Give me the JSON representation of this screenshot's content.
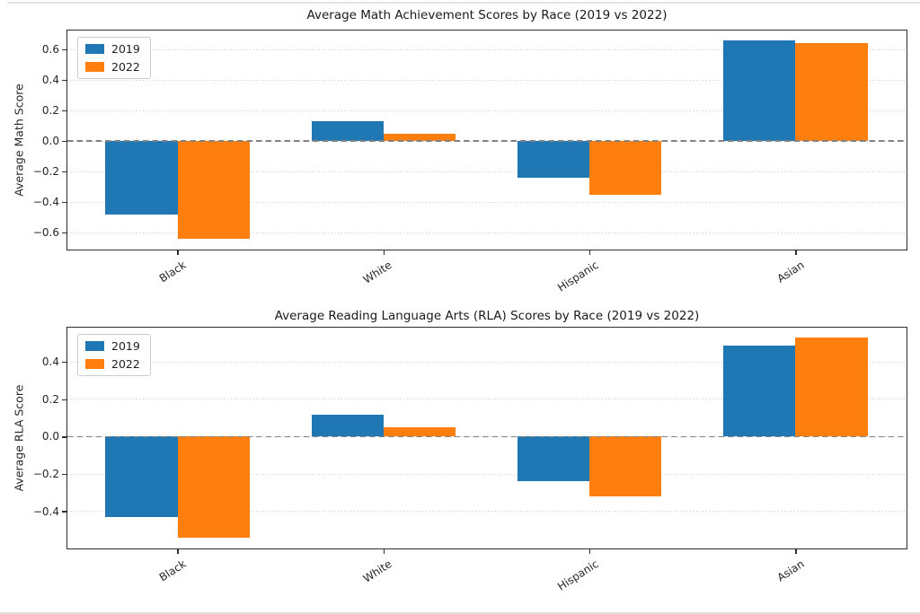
{
  "figure": {
    "background": "#ffffff",
    "top_border_color": "#e4e4e4",
    "bottom_border_color": "#e0e0e0"
  },
  "styles": {
    "series_2019_color": "#1f77b4",
    "series_2022_color": "#ff7f0e",
    "zero_line_color": "#828282",
    "gridline_color": "#c8c8c8",
    "spine_color": "#2e2e2e",
    "legend_border_color": "#cccccc",
    "text_color": "#1f1f1f"
  },
  "chart_data": [
    {
      "type": "bar",
      "title": "Average Math Achievement Scores by Race (2019 vs 2022)",
      "ylabel": "Average Math Score",
      "xlabel": "",
      "categories": [
        "Black",
        "White",
        "Hispanic",
        "Asian"
      ],
      "series": [
        {
          "name": "2019",
          "color": "#1f77b4",
          "values": [
            -0.48,
            0.13,
            -0.24,
            0.66
          ]
        },
        {
          "name": "2022",
          "color": "#ff7f0e",
          "values": [
            -0.64,
            0.05,
            -0.35,
            0.64
          ]
        }
      ],
      "yticks": [
        0.6,
        0.4,
        0.2,
        0.0,
        -0.2,
        -0.4,
        -0.6
      ],
      "ylim": [
        -0.705,
        0.725
      ],
      "bar_width": 0.35,
      "grid": "dotted horizontal",
      "zero_line": "dashed gray at 0",
      "legend_position": "upper left",
      "legend_labels": [
        "2019",
        "2022"
      ]
    },
    {
      "type": "bar",
      "title": "Average Reading Language Arts (RLA) Scores by Race (2019 vs 2022)",
      "ylabel": "Average RLA Score",
      "xlabel": "",
      "categories": [
        "Black",
        "White",
        "Hispanic",
        "Asian"
      ],
      "series": [
        {
          "name": "2019",
          "color": "#1f77b4",
          "values": [
            -0.43,
            0.12,
            -0.24,
            0.49
          ]
        },
        {
          "name": "2022",
          "color": "#ff7f0e",
          "values": [
            -0.54,
            0.05,
            -0.32,
            0.53
          ]
        }
      ],
      "yticks": [
        0.4,
        0.2,
        0.0,
        -0.2,
        -0.4
      ],
      "ylim": [
        -0.594,
        0.584
      ],
      "bar_width": 0.35,
      "grid": "dotted horizontal",
      "zero_line": "dashed gray at 0",
      "legend_position": "upper left",
      "legend_labels": [
        "2019",
        "2022"
      ]
    }
  ]
}
